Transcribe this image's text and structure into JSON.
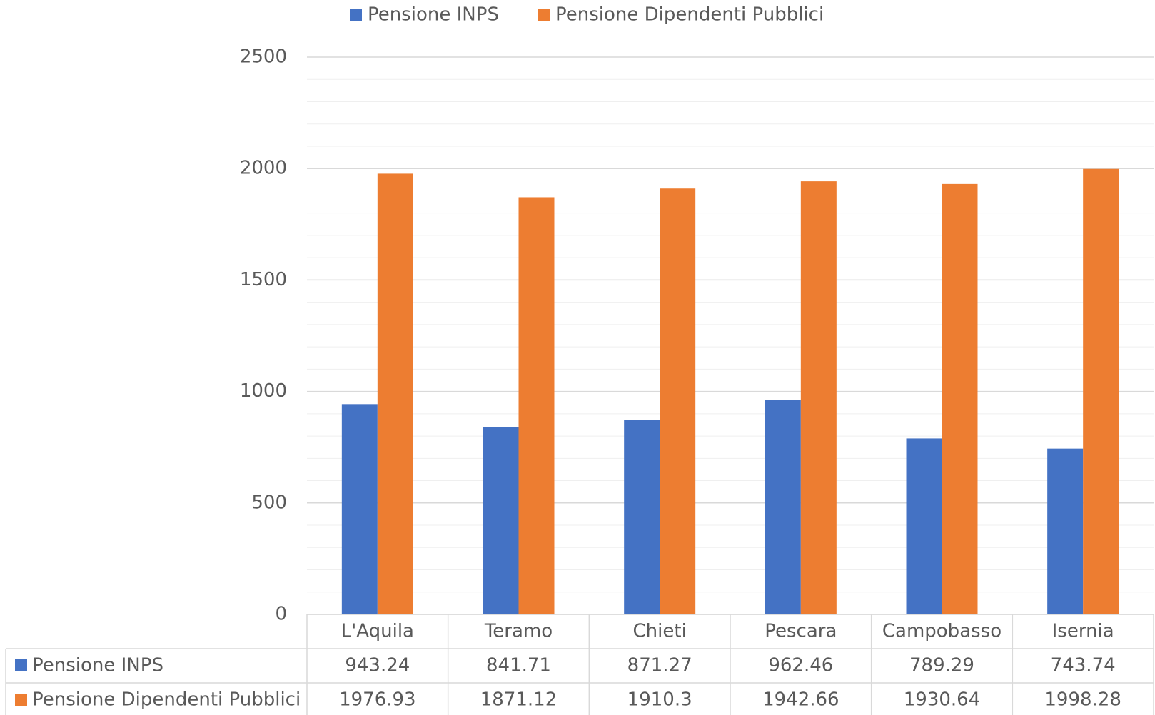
{
  "chart_data": {
    "type": "bar",
    "categories": [
      "L'Aquila",
      "Teramo",
      "Chieti",
      "Pescara",
      "Campobasso",
      "Isernia"
    ],
    "series": [
      {
        "name": "Pensione INPS",
        "color": "#4472c4",
        "values": [
          943.24,
          841.71,
          871.27,
          962.46,
          789.29,
          743.74
        ]
      },
      {
        "name": "Pensione Dipendenti Pubblici",
        "color": "#ed7d31",
        "values": [
          1976.93,
          1871.12,
          1910.3,
          1942.66,
          1930.64,
          1998.28
        ]
      }
    ],
    "ylim": [
      0,
      2500
    ],
    "yticks": [
      0,
      500,
      1000,
      1500,
      2000,
      2500
    ],
    "minor_yticks": [
      100,
      200,
      300,
      400,
      600,
      700,
      800,
      900,
      1100,
      1200,
      1300,
      1400,
      1600,
      1700,
      1800,
      1900,
      2100,
      2200,
      2300,
      2400
    ],
    "grid": true,
    "legend": "top",
    "data_table": true
  }
}
